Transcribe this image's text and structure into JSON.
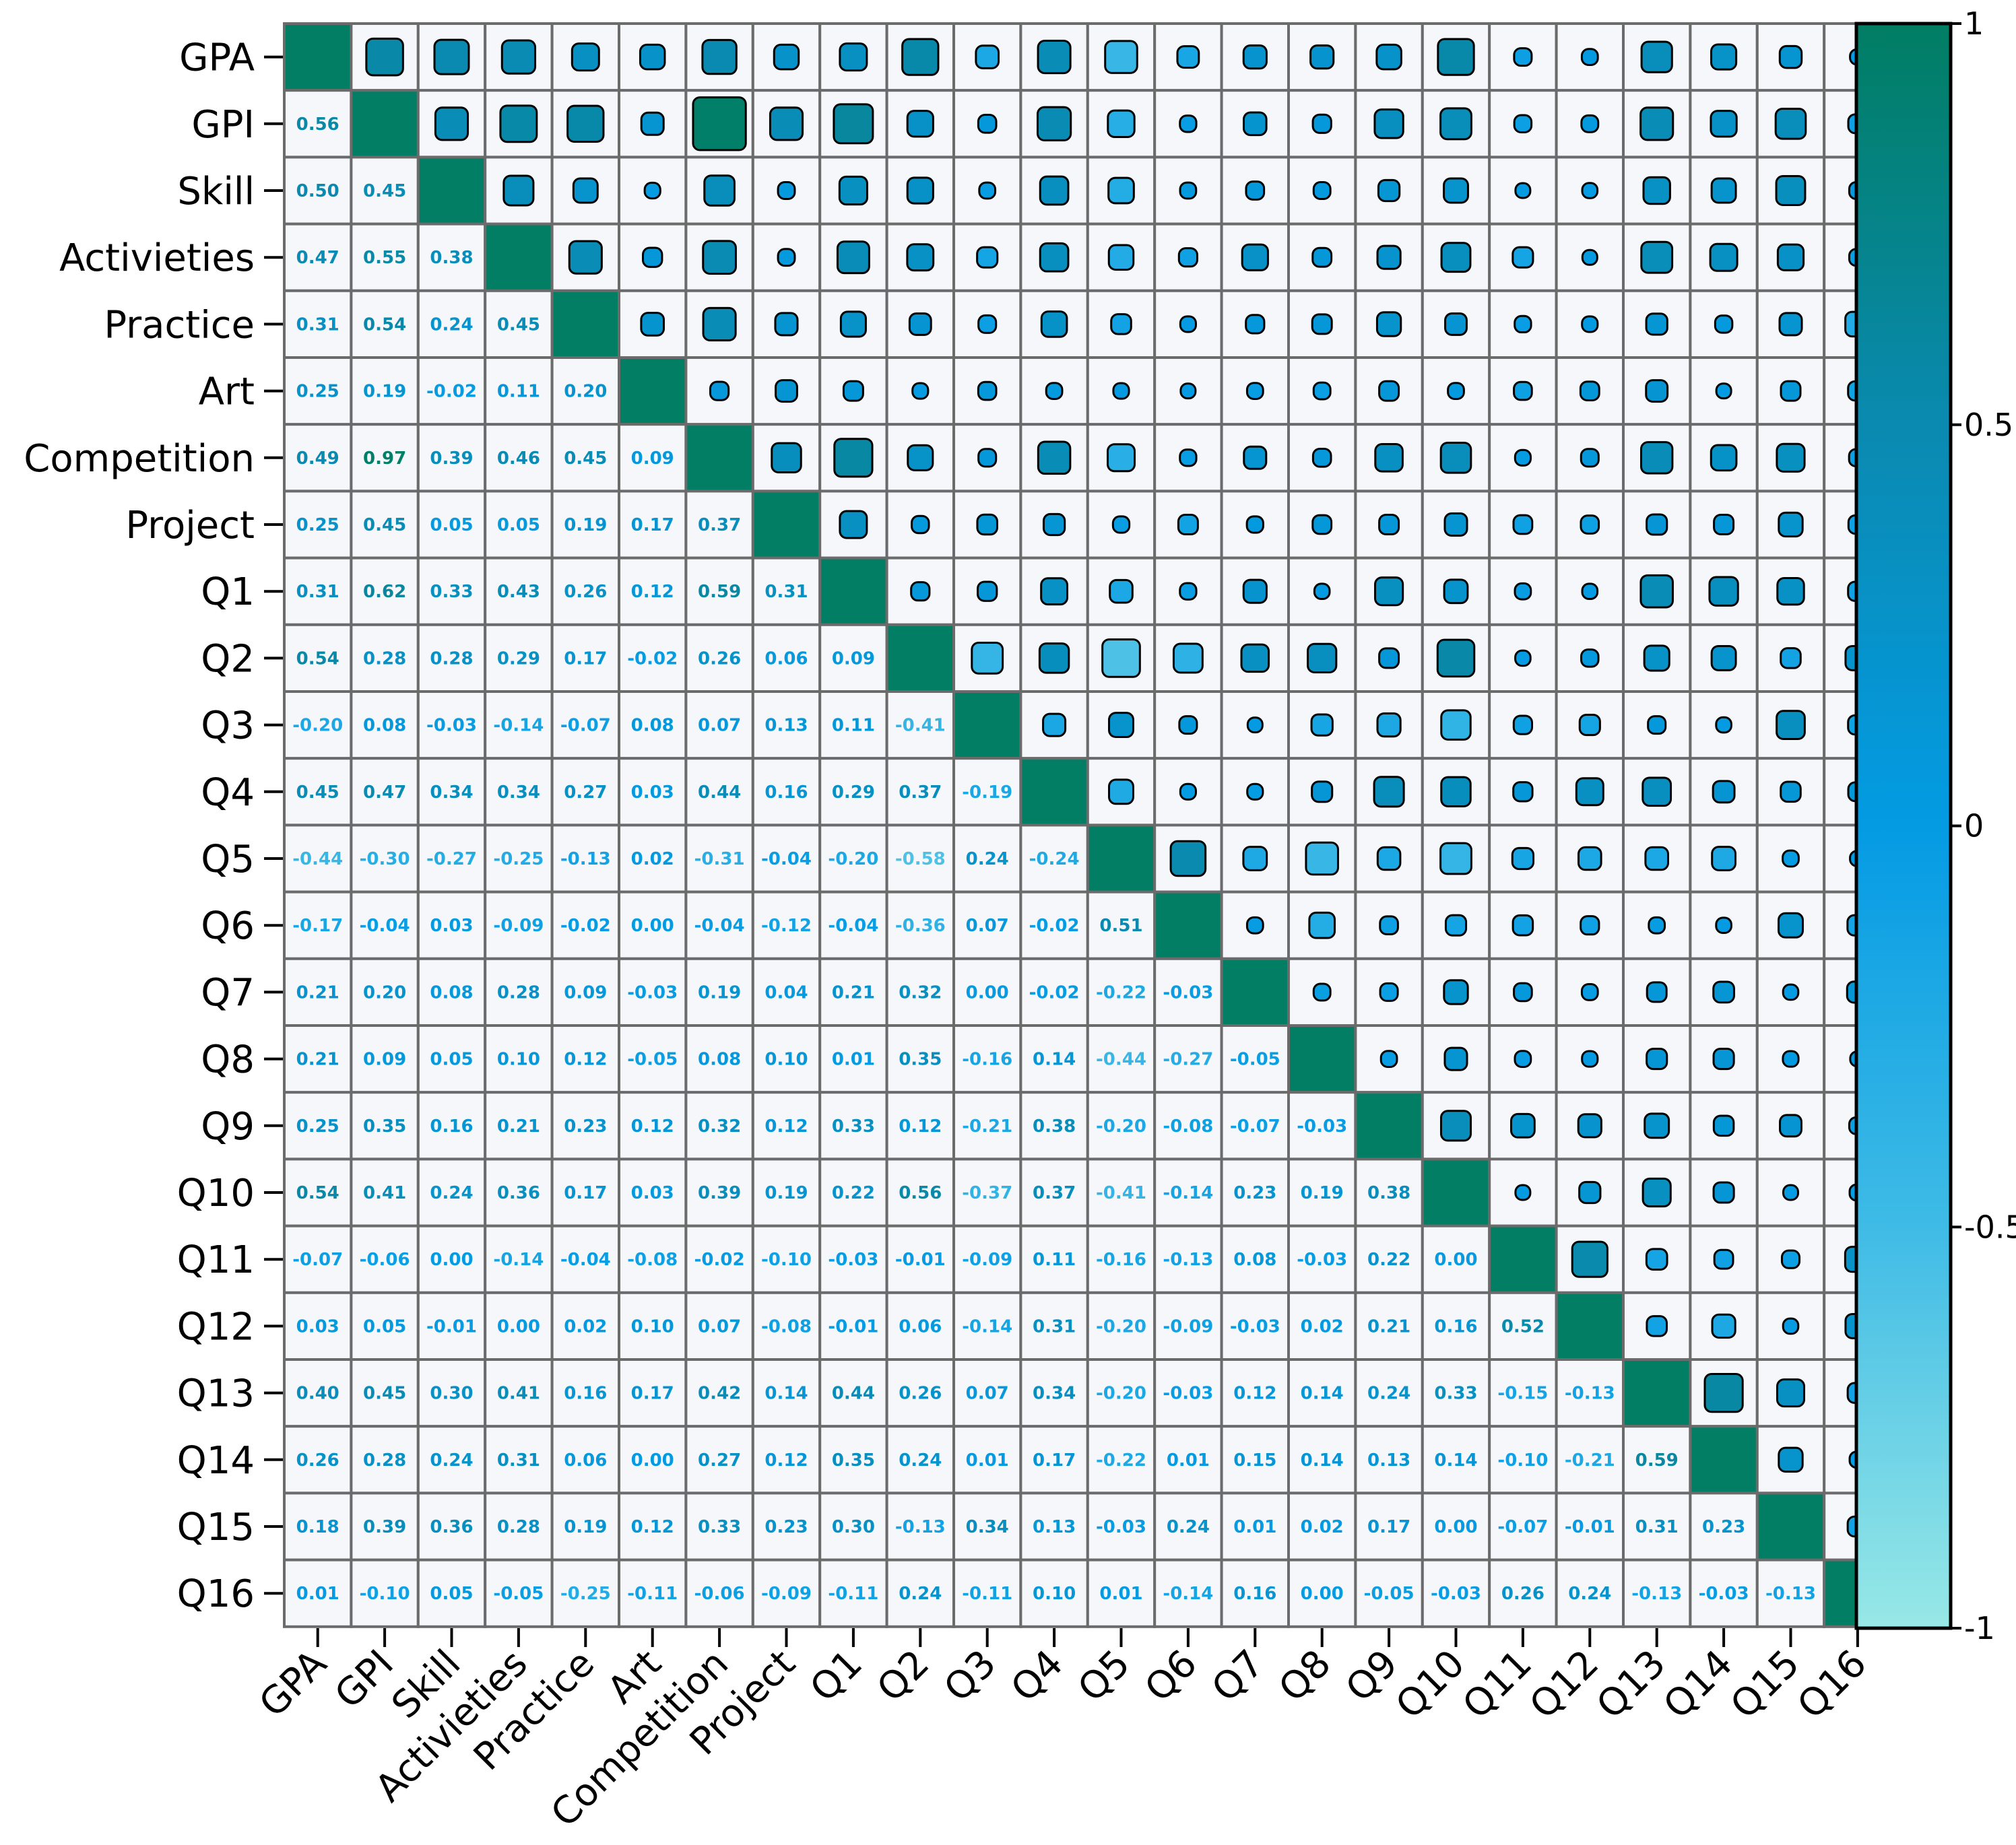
{
  "chart_data": {
    "type": "heatmap",
    "subtype": "correlation-matrix (lower triangle: values, upper triangle: square markers sized by |r|)",
    "title": "",
    "variables": [
      "GPA",
      "GPI",
      "Skill",
      "Activieties",
      "Practice",
      "Art",
      "Competition",
      "Project",
      "Q1",
      "Q2",
      "Q3",
      "Q4",
      "Q5",
      "Q6",
      "Q7",
      "Q8",
      "Q9",
      "Q10",
      "Q11",
      "Q12",
      "Q13",
      "Q14",
      "Q15",
      "Q16"
    ],
    "lower_triangle": [
      [],
      [
        "0.56"
      ],
      [
        "0.50",
        "0.45"
      ],
      [
        "0.47",
        "0.55",
        "0.38"
      ],
      [
        "0.31",
        "0.54",
        "0.24",
        "0.45"
      ],
      [
        "0.25",
        "0.19",
        "-0.02",
        "0.11",
        "0.20"
      ],
      [
        "0.49",
        "0.97",
        "0.39",
        "0.46",
        "0.45",
        "0.09"
      ],
      [
        "0.25",
        "0.45",
        "0.05",
        "0.05",
        "0.19",
        "0.17",
        "0.37"
      ],
      [
        "0.31",
        "0.62",
        "0.33",
        "0.43",
        "0.26",
        "0.12",
        "0.59",
        "0.31"
      ],
      [
        "0.54",
        "0.28",
        "0.28",
        "0.29",
        "0.17",
        "-0.02",
        "0.26",
        "0.06",
        "0.09"
      ],
      [
        "-0.20",
        "0.08",
        "-0.03",
        "-0.14",
        "-0.07",
        "0.08",
        "0.07",
        "0.13",
        "0.11",
        "-0.41"
      ],
      [
        "0.45",
        "0.47",
        "0.34",
        "0.34",
        "0.27",
        "0.03",
        "0.44",
        "0.16",
        "0.29",
        "0.37",
        "-0.19"
      ],
      [
        "-0.44",
        "-0.30",
        "-0.27",
        "-0.25",
        "-0.13",
        "0.02",
        "-0.31",
        "-0.04",
        "-0.20",
        "-0.58",
        "0.24",
        "-0.24"
      ],
      [
        "-0.17",
        "-0.04",
        "0.03",
        "-0.09",
        "-0.02",
        "0.00",
        "-0.04",
        "-0.12",
        "-0.04",
        "-0.36",
        "0.07",
        "-0.02",
        "0.51"
      ],
      [
        "0.21",
        "0.20",
        "0.08",
        "0.28",
        "0.09",
        "-0.03",
        "0.19",
        "0.04",
        "0.21",
        "0.32",
        "0.00",
        "-0.02",
        "-0.22",
        "-0.03"
      ],
      [
        "0.21",
        "0.09",
        "0.05",
        "0.10",
        "0.12",
        "-0.05",
        "0.08",
        "0.10",
        "0.01",
        "0.35",
        "-0.16",
        "0.14",
        "-0.44",
        "-0.27",
        "-0.05"
      ],
      [
        "0.25",
        "0.35",
        "0.16",
        "0.21",
        "0.23",
        "0.12",
        "0.32",
        "0.12",
        "0.33",
        "0.12",
        "-0.21",
        "0.38",
        "-0.20",
        "-0.08",
        "-0.07",
        "-0.03"
      ],
      [
        "0.54",
        "0.41",
        "0.24",
        "0.36",
        "0.17",
        "0.03",
        "0.39",
        "0.19",
        "0.22",
        "0.56",
        "-0.37",
        "0.37",
        "-0.41",
        "-0.14",
        "0.23",
        "0.19",
        "0.38"
      ],
      [
        "-0.07",
        "-0.06",
        "0.00",
        "-0.14",
        "-0.04",
        "-0.08",
        "-0.02",
        "-0.10",
        "-0.03",
        "-0.01",
        "-0.09",
        "0.11",
        "-0.16",
        "-0.13",
        "0.08",
        "-0.03",
        "0.22",
        "0.00"
      ],
      [
        "0.03",
        "0.05",
        "-0.01",
        "0.00",
        "0.02",
        "0.10",
        "0.07",
        "-0.08",
        "-0.01",
        "0.06",
        "-0.14",
        "0.31",
        "-0.20",
        "-0.09",
        "-0.03",
        "0.02",
        "0.21",
        "0.16",
        "0.52"
      ],
      [
        "0.40",
        "0.45",
        "0.30",
        "0.41",
        "0.16",
        "0.17",
        "0.42",
        "0.14",
        "0.44",
        "0.26",
        "0.07",
        "0.34",
        "-0.20",
        "-0.03",
        "0.12",
        "0.14",
        "0.24",
        "0.33",
        "-0.15",
        "-0.13"
      ],
      [
        "0.26",
        "0.28",
        "0.24",
        "0.31",
        "0.06",
        "0.00",
        "0.27",
        "0.12",
        "0.35",
        "0.24",
        "0.01",
        "0.17",
        "-0.22",
        "0.01",
        "0.15",
        "0.14",
        "0.13",
        "0.14",
        "-0.10",
        "-0.21",
        "0.59"
      ],
      [
        "0.18",
        "0.39",
        "0.36",
        "0.28",
        "0.19",
        "0.12",
        "0.33",
        "0.23",
        "0.30",
        "-0.13",
        "0.34",
        "0.13",
        "-0.03",
        "0.24",
        "0.01",
        "0.02",
        "0.17",
        "0.00",
        "-0.07",
        "-0.01",
        "0.31",
        "0.23"
      ],
      [
        "0.01",
        "-0.10",
        "0.05",
        "-0.05",
        "-0.25",
        "-0.11",
        "-0.06",
        "-0.09",
        "-0.11",
        "0.24",
        "-0.11",
        "0.10",
        "0.01",
        "-0.14",
        "0.16",
        "0.00",
        "-0.05",
        "-0.03",
        "0.26",
        "0.24",
        "-0.13",
        "-0.03",
        "-0.13"
      ]
    ],
    "upper_triangle_marker_values": [
      [
        0.56,
        0.5,
        0.47,
        0.31,
        0.25,
        0.49,
        0.25,
        0.31,
        0.54,
        -0.2,
        0.45,
        -0.44,
        -0.17,
        0.21,
        0.21,
        0.25,
        0.54,
        -0.07,
        0.03,
        0.4,
        0.26,
        0.18,
        0.01
      ],
      [
        0.45,
        0.55,
        0.54,
        0.19,
        0.97,
        0.45,
        0.62,
        0.28,
        0.08,
        0.47,
        -0.3,
        -0.04,
        0.2,
        0.09,
        0.35,
        0.41,
        -0.06,
        0.05,
        0.45,
        0.28,
        0.39,
        -0.1
      ],
      [
        0.38,
        0.24,
        -0.02,
        0.39,
        0.05,
        0.33,
        0.28,
        -0.03,
        0.34,
        -0.27,
        0.03,
        0.08,
        0.05,
        0.16,
        0.24,
        0.0,
        -0.01,
        0.3,
        0.24,
        0.36,
        0.05
      ],
      [
        0.45,
        0.11,
        0.46,
        0.05,
        0.43,
        0.29,
        -0.14,
        0.34,
        -0.25,
        -0.09,
        0.28,
        0.1,
        0.21,
        0.36,
        -0.14,
        0.0,
        0.41,
        0.31,
        0.28,
        -0.05
      ],
      [
        0.2,
        0.45,
        0.19,
        0.26,
        0.17,
        -0.07,
        0.27,
        -0.13,
        -0.02,
        0.09,
        0.12,
        0.23,
        0.17,
        -0.04,
        0.02,
        0.16,
        0.06,
        0.19,
        -0.25
      ],
      [
        0.09,
        0.17,
        0.12,
        -0.02,
        0.08,
        0.03,
        0.02,
        0.0,
        -0.03,
        -0.05,
        0.12,
        0.03,
        -0.08,
        0.1,
        0.17,
        0.0,
        0.12,
        -0.11
      ],
      [
        0.37,
        0.59,
        0.26,
        0.07,
        0.44,
        -0.31,
        -0.04,
        0.19,
        0.08,
        0.32,
        0.39,
        -0.02,
        0.07,
        0.42,
        0.27,
        0.33,
        -0.06
      ],
      [
        0.31,
        0.06,
        0.13,
        0.16,
        -0.04,
        -0.12,
        0.04,
        0.1,
        0.12,
        0.19,
        -0.1,
        -0.08,
        0.14,
        0.12,
        0.23,
        -0.09
      ],
      [
        0.09,
        0.11,
        0.29,
        -0.2,
        -0.04,
        0.21,
        0.01,
        0.33,
        0.22,
        -0.03,
        -0.01,
        0.44,
        0.35,
        0.3,
        -0.11
      ],
      [
        -0.41,
        0.37,
        -0.58,
        -0.36,
        0.32,
        0.35,
        0.12,
        0.56,
        -0.01,
        0.06,
        0.26,
        0.24,
        -0.13,
        0.24
      ],
      [
        -0.19,
        0.24,
        0.07,
        0.0,
        -0.16,
        -0.21,
        -0.37,
        -0.09,
        -0.14,
        0.07,
        0.01,
        0.34,
        -0.11
      ],
      [
        -0.24,
        -0.02,
        -0.02,
        0.14,
        0.38,
        0.37,
        0.11,
        0.31,
        0.34,
        0.17,
        0.13,
        0.1
      ],
      [
        0.51,
        -0.22,
        -0.44,
        -0.2,
        -0.41,
        -0.16,
        -0.2,
        -0.2,
        -0.22,
        -0.03,
        0.01
      ],
      [
        -0.03,
        -0.27,
        -0.08,
        -0.14,
        -0.13,
        -0.09,
        -0.03,
        0.01,
        0.24,
        -0.14
      ],
      [
        -0.05,
        -0.07,
        0.23,
        0.08,
        -0.03,
        0.12,
        0.15,
        0.01,
        0.16
      ],
      [
        -0.03,
        0.19,
        -0.03,
        0.02,
        0.14,
        0.14,
        0.02,
        0.0
      ],
      [
        0.38,
        0.22,
        0.21,
        0.24,
        0.13,
        0.17,
        -0.05
      ],
      [
        0.0,
        0.16,
        0.33,
        0.14,
        0.0,
        -0.03
      ],
      [
        0.52,
        -0.15,
        -0.1,
        -0.07,
        0.26
      ],
      [
        -0.13,
        -0.21,
        -0.01,
        0.24
      ],
      [
        0.59,
        0.31,
        -0.13
      ],
      [
        0.23,
        -0.03
      ],
      [
        -0.13
      ]
    ],
    "diagonal_value": 1,
    "colorbar": {
      "range": [
        -1,
        1
      ],
      "ticks": [
        "1",
        "0.5",
        "0",
        "-0.5",
        "-1"
      ],
      "colors": {
        "neg_end": "#98e8e6",
        "neg_mid": "#3fbbe6",
        "zero": "#049be3",
        "pos_mid": "#0a8ab0",
        "pos_end": "#017e63"
      }
    },
    "cell_background": "#f5f7fa",
    "grid_color": "#6b6b6b"
  }
}
